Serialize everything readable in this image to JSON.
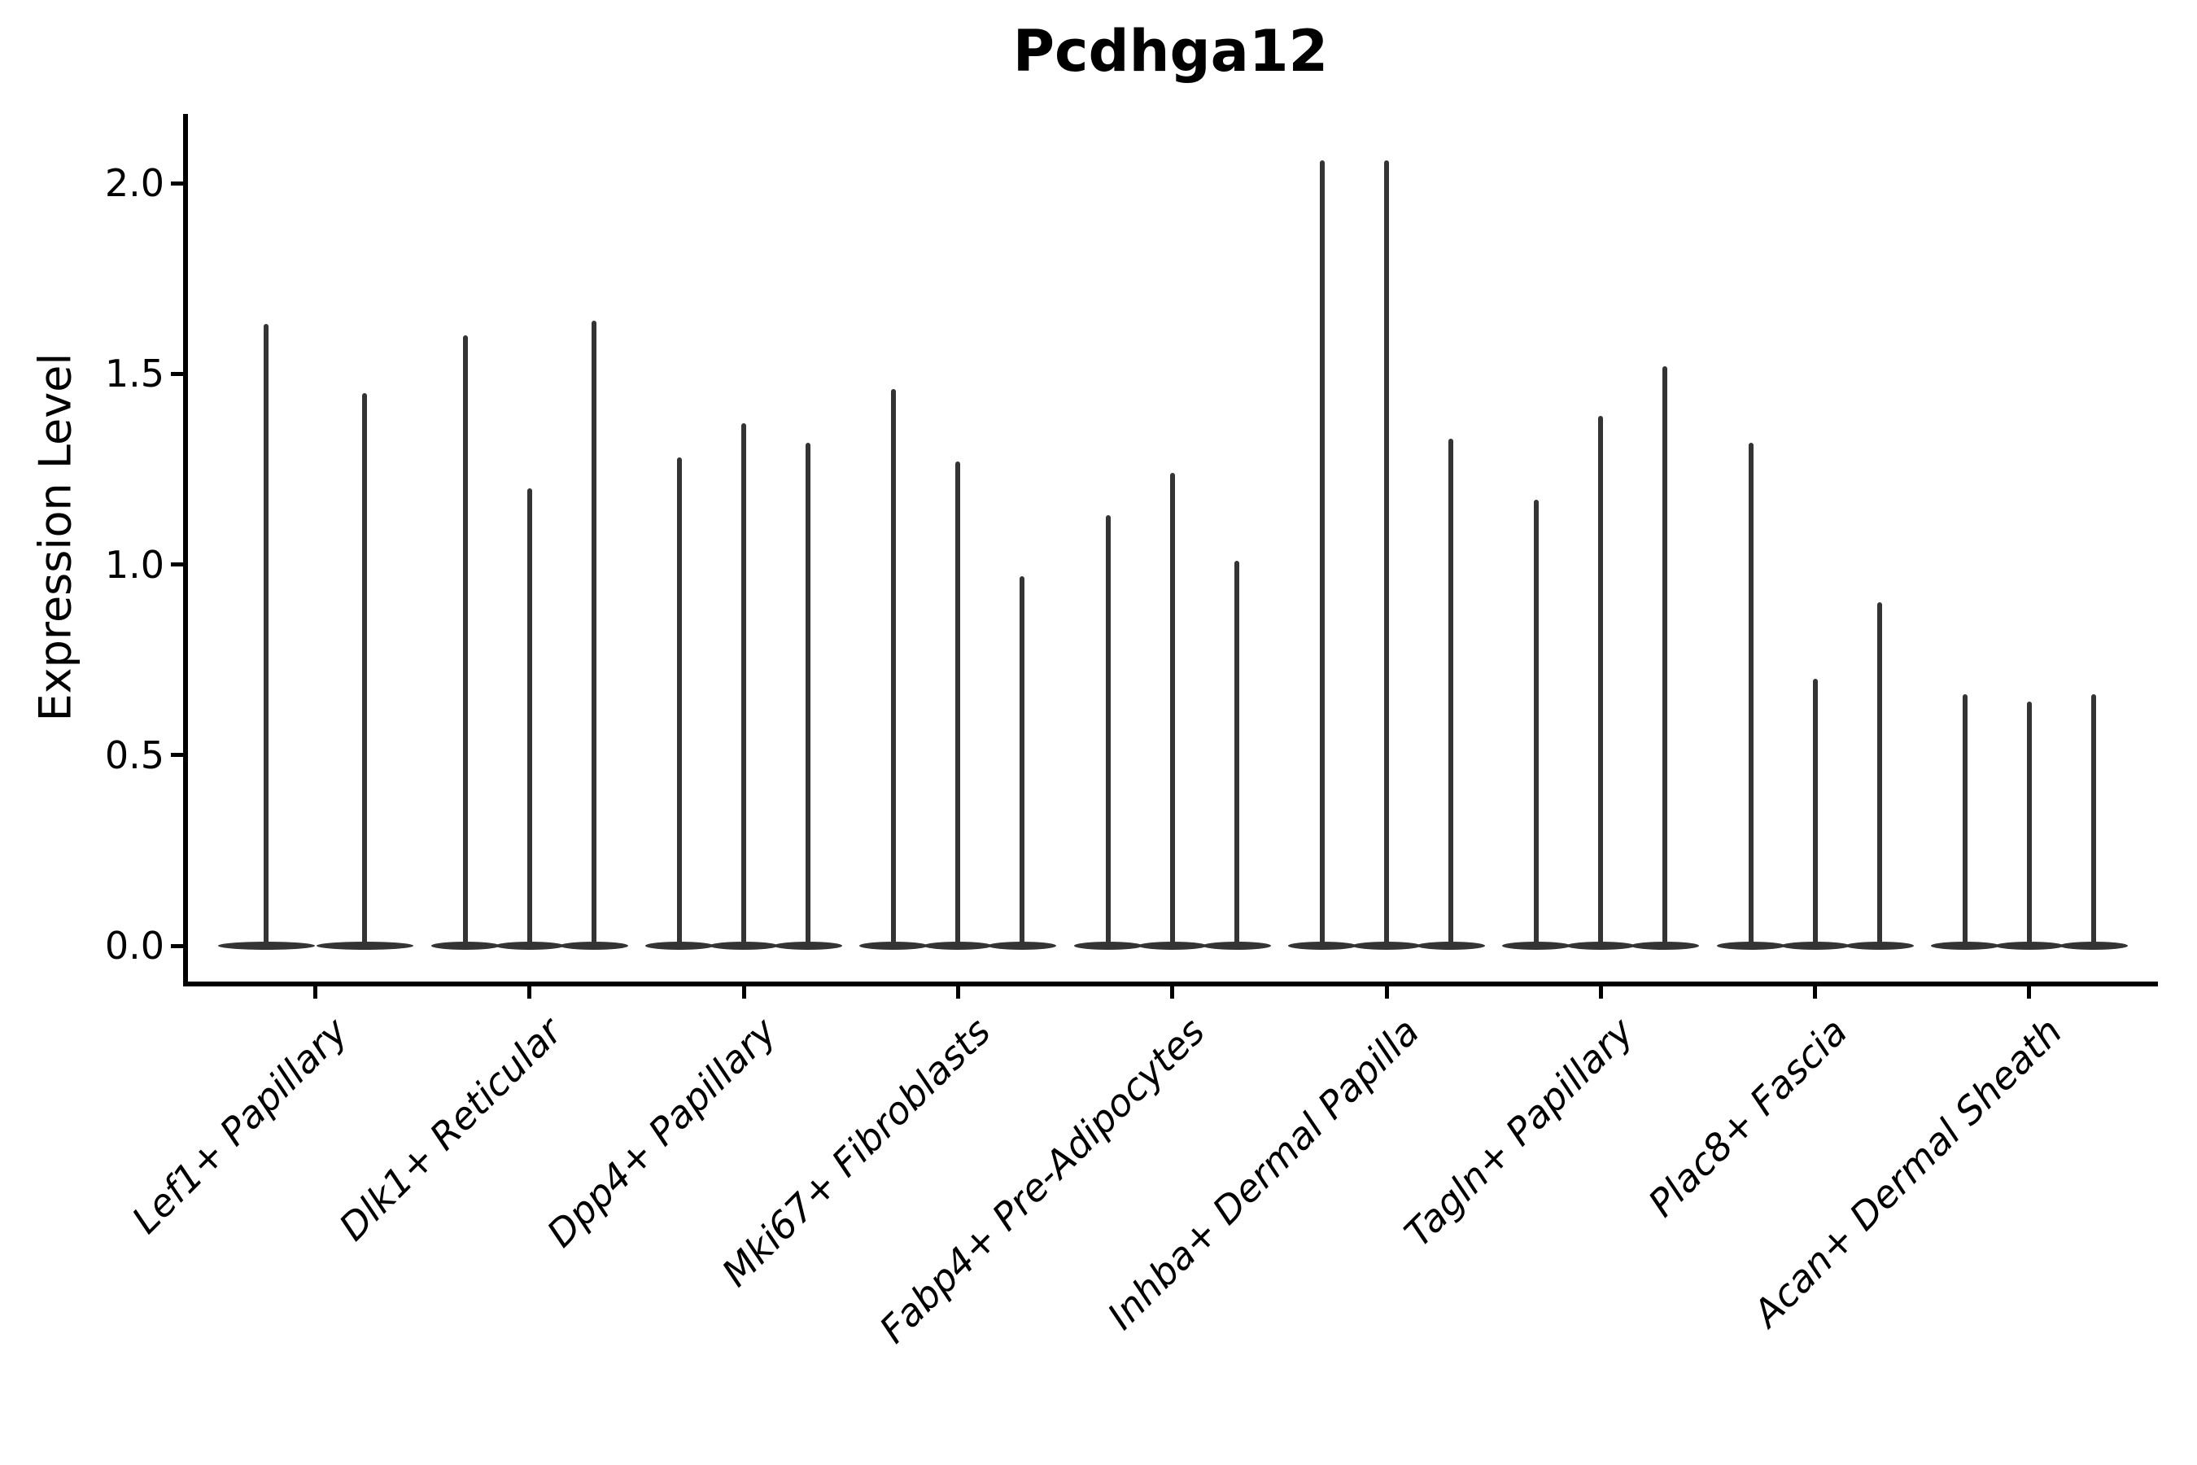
{
  "chart_data": {
    "type": "violin",
    "title": "Pcdhga12",
    "xlabel": "",
    "ylabel": "Expression Level",
    "yticks": [
      0.0,
      0.5,
      1.0,
      1.5,
      2.0
    ],
    "ytick_labels": [
      "0.0",
      "0.5",
      "1.0",
      "1.5",
      "2.0"
    ],
    "ylim": [
      -0.1,
      2.3
    ],
    "grid": false,
    "legend": "none",
    "violin_color": "#343434",
    "axis_color": "#000000",
    "categories": [
      "Lef1+ Papillary",
      "Dlk1+ Reticular",
      "Dpp4+ Papillary",
      "Mki67+ Fibroblasts",
      "Fabp4+ Pre-Adipocytes",
      "Inhba+ Dermal Papilla",
      "Tagln+ Papillary",
      "Plac8+ Fascia",
      "Acan+ Dermal Sheath"
    ],
    "groups": [
      {
        "label": "Lef1+ Papillary",
        "violin_max_values": [
          1.63,
          1.45
        ]
      },
      {
        "label": "Dlk1+ Reticular",
        "violin_max_values": [
          1.6,
          1.2,
          1.64
        ]
      },
      {
        "label": "Dpp4+ Papillary",
        "violin_max_values": [
          1.28,
          1.37,
          1.32
        ]
      },
      {
        "label": "Mki67+ Fibroblasts",
        "violin_max_values": [
          1.46,
          1.27,
          0.97
        ]
      },
      {
        "label": "Fabp4+ Pre-Adipocytes",
        "violin_max_values": [
          1.13,
          1.24,
          1.01
        ]
      },
      {
        "label": "Inhba+ Dermal Papilla",
        "violin_max_values": [
          2.06,
          2.06,
          1.33
        ]
      },
      {
        "label": "Tagln+ Papillary",
        "violin_max_values": [
          1.17,
          1.39,
          1.52
        ]
      },
      {
        "label": "Plac8+ Fascia",
        "violin_max_values": [
          1.32,
          0.7,
          0.9
        ]
      },
      {
        "label": "Acan+ Dermal Sheath",
        "violin_max_values": [
          0.66,
          0.64,
          0.66
        ]
      }
    ],
    "notes": "Each violin is a near-zero-width spike (most cells express 0) rising from a flat wide base centered at y=0 up to that violin's maximum expression value."
  }
}
